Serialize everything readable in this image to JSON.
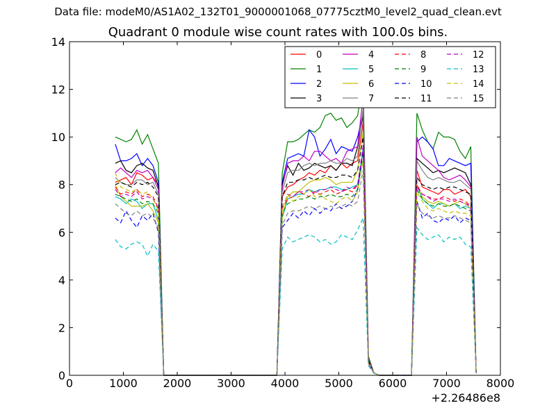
{
  "figure": {
    "suptitle": "Data file: modeM0/AS1A02_132T01_9000001068_07775cztM0_level2_quad_clean.evt"
  },
  "chart_data": {
    "type": "line",
    "title": "Quadrant 0 module wise count rates with 100.0s bins.",
    "xlabel": "",
    "ylabel": "",
    "x_offset_label": "+2.26486e8",
    "xlim": [
      0,
      8000
    ],
    "ylim": [
      0,
      14
    ],
    "x_ticks": [
      0,
      1000,
      2000,
      3000,
      4000,
      5000,
      6000,
      7000,
      8000
    ],
    "y_ticks": [
      0,
      2,
      4,
      6,
      8,
      10,
      12,
      14
    ],
    "grid": false,
    "legend_position": "top-right",
    "x": [
      850,
      950,
      1050,
      1150,
      1250,
      1350,
      1450,
      1550,
      1650,
      1750,
      1850,
      1950,
      2050,
      2150,
      2250,
      2350,
      2450,
      2550,
      2650,
      2750,
      2850,
      2950,
      3050,
      3150,
      3250,
      3350,
      3450,
      3550,
      3650,
      3750,
      3850,
      3950,
      4050,
      4150,
      4250,
      4350,
      4450,
      4550,
      4650,
      4750,
      4850,
      4950,
      5050,
      5150,
      5250,
      5350,
      5450,
      5550,
      5650,
      5750,
      5850,
      5950,
      6050,
      6150,
      6250,
      6350,
      6450,
      6550,
      6650,
      6750,
      6850,
      6950,
      7050,
      7150,
      7250,
      7350,
      7450,
      7550
    ],
    "series": [
      {
        "name": "0",
        "color": "#ff0000",
        "dash": "solid",
        "values": [
          8.1,
          8.2,
          8.3,
          8.0,
          8.5,
          8.4,
          8.2,
          8.3,
          8.0,
          0,
          0,
          0,
          0,
          0,
          0,
          0,
          0,
          0,
          0,
          0,
          0,
          0,
          0,
          0,
          0,
          0,
          0,
          0,
          0,
          0,
          0,
          7.5,
          7.9,
          8.0,
          8.2,
          8.3,
          8.5,
          8.4,
          8.6,
          8.5,
          8.8,
          8.6,
          8.9,
          8.7,
          8.9,
          9.0,
          10.6,
          0.6,
          0.1,
          0,
          0,
          0,
          0,
          0,
          0,
          0,
          8.6,
          7.9,
          7.8,
          7.7,
          7.6,
          7.8,
          7.8,
          7.6,
          7.7,
          7.8,
          7.5,
          0.1
        ]
      },
      {
        "name": "1",
        "color": "#008000",
        "dash": "solid",
        "values": [
          10.0,
          9.9,
          9.8,
          9.9,
          10.3,
          9.7,
          10.1,
          9.5,
          8.9,
          0,
          0,
          0,
          0,
          0,
          0,
          0,
          0,
          0,
          0,
          0,
          0,
          0,
          0,
          0,
          0,
          0,
          0,
          0,
          0,
          0,
          0,
          8.5,
          9.8,
          9.8,
          9.9,
          10.1,
          10.3,
          10.2,
          10.4,
          10.9,
          11.0,
          10.7,
          10.8,
          10.4,
          10.6,
          10.9,
          12.4,
          0.8,
          0.1,
          0,
          0,
          0,
          0,
          0,
          0,
          0,
          11.0,
          10.3,
          9.8,
          9.5,
          10.2,
          10.0,
          10.0,
          9.9,
          9.4,
          9.1,
          9.6,
          0.1
        ]
      },
      {
        "name": "2",
        "color": "#0000ff",
        "dash": "solid",
        "values": [
          9.7,
          9.0,
          9.0,
          9.1,
          9.3,
          8.8,
          9.1,
          8.8,
          8.1,
          0,
          0,
          0,
          0,
          0,
          0,
          0,
          0,
          0,
          0,
          0,
          0,
          0,
          0,
          0,
          0,
          0,
          0,
          0,
          0,
          0,
          0,
          8.1,
          9.1,
          9.2,
          9.3,
          9.2,
          10.3,
          10.0,
          9.2,
          9.5,
          9.9,
          9.3,
          9.6,
          9.5,
          9.4,
          10.0,
          11.0,
          0.6,
          0.1,
          0,
          0,
          0,
          0,
          0,
          0,
          0,
          9.8,
          10.0,
          9.8,
          9.5,
          8.8,
          8.8,
          9.1,
          9.0,
          8.9,
          8.8,
          8.9,
          0.1
        ]
      },
      {
        "name": "3",
        "color": "#000000",
        "dash": "solid",
        "values": [
          8.9,
          9.0,
          8.6,
          8.5,
          8.8,
          8.9,
          8.7,
          8.6,
          7.9,
          0,
          0,
          0,
          0,
          0,
          0,
          0,
          0,
          0,
          0,
          0,
          0,
          0,
          0,
          0,
          0,
          0,
          0,
          0,
          0,
          0,
          0,
          8.0,
          8.8,
          8.4,
          8.9,
          8.6,
          8.7,
          8.9,
          8.8,
          8.7,
          8.8,
          8.6,
          8.9,
          8.9,
          8.8,
          9.6,
          10.9,
          0.6,
          0.1,
          0,
          0,
          0,
          0,
          0,
          0,
          0,
          9.1,
          8.9,
          8.7,
          8.5,
          8.6,
          8.5,
          8.6,
          8.7,
          8.6,
          8.5,
          8.0,
          0.1
        ]
      },
      {
        "name": "4",
        "color": "#bf00bf",
        "dash": "solid",
        "values": [
          8.5,
          8.7,
          8.5,
          8.3,
          8.6,
          8.5,
          8.6,
          8.3,
          7.8,
          0,
          0,
          0,
          0,
          0,
          0,
          0,
          0,
          0,
          0,
          0,
          0,
          0,
          0,
          0,
          0,
          0,
          0,
          0,
          0,
          0,
          0,
          7.9,
          8.9,
          9.0,
          9.0,
          9.2,
          9.0,
          9.4,
          9.4,
          9.2,
          9.0,
          9.1,
          8.9,
          9.4,
          9.5,
          9.6,
          11.7,
          0.7,
          0.1,
          0,
          0,
          0,
          0,
          0,
          0,
          0,
          10.0,
          9.2,
          9.0,
          8.8,
          8.6,
          8.3,
          8.2,
          8.3,
          8.4,
          8.2,
          7.9,
          0.1
        ]
      },
      {
        "name": "5",
        "color": "#00bfbf",
        "dash": "solid",
        "values": [
          7.5,
          7.4,
          7.2,
          7.4,
          7.3,
          7.0,
          7.2,
          7.2,
          6.5,
          0,
          0,
          0,
          0,
          0,
          0,
          0,
          0,
          0,
          0,
          0,
          0,
          0,
          0,
          0,
          0,
          0,
          0,
          0,
          0,
          0,
          0,
          6.6,
          7.4,
          7.5,
          7.6,
          7.6,
          7.8,
          7.7,
          7.8,
          7.8,
          7.9,
          7.9,
          7.8,
          7.8,
          7.9,
          8.0,
          9.5,
          0.5,
          0.1,
          0,
          0,
          0,
          0,
          0,
          0,
          0,
          8.0,
          7.4,
          7.2,
          7.0,
          7.2,
          7.2,
          7.1,
          7.2,
          7.0,
          7.1,
          7.0,
          0.1
        ]
      },
      {
        "name": "6",
        "color": "#bfbf00",
        "dash": "solid",
        "values": [
          8.0,
          7.5,
          7.3,
          7.1,
          7.1,
          7.1,
          7.2,
          6.9,
          6.4,
          0,
          0,
          0,
          0,
          0,
          0,
          0,
          0,
          0,
          0,
          0,
          0,
          0,
          0,
          0,
          0,
          0,
          0,
          0,
          0,
          0,
          0,
          6.7,
          7.5,
          7.7,
          7.7,
          7.9,
          8.1,
          8.2,
          8.2,
          8.3,
          8.2,
          8.0,
          8.1,
          8.1,
          8.1,
          8.6,
          10.2,
          0.6,
          0.1,
          0,
          0,
          0,
          0,
          0,
          0,
          0,
          8.0,
          7.5,
          7.3,
          7.2,
          7.3,
          7.2,
          7.1,
          7.2,
          7.3,
          7.2,
          7.0,
          0.1
        ]
      },
      {
        "name": "7",
        "color": "#808080",
        "dash": "solid",
        "values": [
          8.3,
          8.1,
          8.0,
          8.0,
          8.2,
          8.2,
          8.0,
          8.1,
          7.6,
          0,
          0,
          0,
          0,
          0,
          0,
          0,
          0,
          0,
          0,
          0,
          0,
          0,
          0,
          0,
          0,
          0,
          0,
          0,
          0,
          0,
          0,
          7.7,
          8.5,
          8.6,
          8.6,
          8.8,
          8.9,
          8.8,
          8.9,
          8.9,
          9.0,
          8.9,
          8.9,
          9.1,
          9.0,
          9.2,
          11.2,
          0.6,
          0.1,
          0,
          0,
          0,
          0,
          0,
          0,
          0,
          9.0,
          8.6,
          8.3,
          8.2,
          8.3,
          8.2,
          8.1,
          8.1,
          8.2,
          8.0,
          7.8,
          0.1
        ]
      },
      {
        "name": "8",
        "color": "#ff0000",
        "dash": "dashed",
        "values": [
          7.9,
          7.6,
          7.7,
          7.6,
          7.8,
          7.5,
          7.6,
          7.5,
          7.0,
          0,
          0,
          0,
          0,
          0,
          0,
          0,
          0,
          0,
          0,
          0,
          0,
          0,
          0,
          0,
          0,
          0,
          0,
          0,
          0,
          0,
          0,
          7.0,
          7.4,
          7.5,
          7.7,
          7.6,
          7.5,
          7.7,
          7.6,
          7.7,
          7.8,
          7.6,
          7.7,
          7.8,
          7.7,
          8.0,
          9.4,
          0.5,
          0.1,
          0,
          0,
          0,
          0,
          0,
          0,
          0,
          8.0,
          7.6,
          7.5,
          7.4,
          7.4,
          7.5,
          7.4,
          7.3,
          7.4,
          7.3,
          7.1,
          0.1
        ]
      },
      {
        "name": "9",
        "color": "#008000",
        "dash": "dashed",
        "values": [
          7.6,
          7.5,
          7.4,
          7.3,
          7.4,
          7.2,
          7.3,
          7.2,
          6.8,
          0,
          0,
          0,
          0,
          0,
          0,
          0,
          0,
          0,
          0,
          0,
          0,
          0,
          0,
          0,
          0,
          0,
          0,
          0,
          0,
          0,
          0,
          6.8,
          7.2,
          7.3,
          7.4,
          7.4,
          7.5,
          7.4,
          7.5,
          7.5,
          7.6,
          7.5,
          7.5,
          7.6,
          7.5,
          7.8,
          9.2,
          0.5,
          0.1,
          0,
          0,
          0,
          0,
          0,
          0,
          0,
          7.8,
          7.4,
          7.2,
          7.1,
          7.2,
          7.1,
          7.1,
          7.2,
          7.1,
          7.0,
          6.9,
          0.1
        ]
      },
      {
        "name": "10",
        "color": "#0000ff",
        "dash": "dashed",
        "values": [
          6.6,
          6.4,
          6.9,
          6.5,
          6.2,
          6.7,
          6.5,
          6.8,
          6.0,
          0,
          0,
          0,
          0,
          0,
          0,
          0,
          0,
          0,
          0,
          0,
          0,
          0,
          0,
          0,
          0,
          0,
          0,
          0,
          0,
          0,
          0,
          6.2,
          6.5,
          6.8,
          6.6,
          6.9,
          6.7,
          7.0,
          6.8,
          7.0,
          6.9,
          7.2,
          7.0,
          7.1,
          7.3,
          7.8,
          9.5,
          0.5,
          0.1,
          0,
          0,
          0,
          0,
          0,
          0,
          0,
          7.3,
          6.6,
          6.8,
          6.5,
          6.4,
          6.6,
          6.5,
          6.7,
          6.4,
          6.6,
          6.5,
          0.1
        ]
      },
      {
        "name": "11",
        "color": "#000000",
        "dash": "dashed",
        "values": [
          8.0,
          8.1,
          8.0,
          7.9,
          8.1,
          8.0,
          8.1,
          7.9,
          7.5,
          0,
          0,
          0,
          0,
          0,
          0,
          0,
          0,
          0,
          0,
          0,
          0,
          0,
          0,
          0,
          0,
          0,
          0,
          0,
          0,
          0,
          0,
          7.5,
          8.1,
          8.1,
          8.2,
          8.2,
          8.3,
          8.2,
          8.3,
          8.4,
          8.3,
          8.3,
          8.4,
          8.4,
          8.3,
          8.6,
          10.0,
          0.6,
          0.1,
          0,
          0,
          0,
          0,
          0,
          0,
          0,
          8.3,
          8.0,
          7.9,
          7.8,
          7.9,
          7.8,
          7.9,
          7.9,
          7.8,
          7.7,
          7.6,
          0.1
        ]
      },
      {
        "name": "12",
        "color": "#bf00bf",
        "dash": "dashed",
        "values": [
          7.8,
          7.5,
          7.6,
          7.5,
          7.7,
          7.4,
          7.5,
          7.4,
          7.0,
          0,
          0,
          0,
          0,
          0,
          0,
          0,
          0,
          0,
          0,
          0,
          0,
          0,
          0,
          0,
          0,
          0,
          0,
          0,
          0,
          0,
          0,
          7.0,
          7.6,
          7.5,
          7.7,
          7.7,
          7.8,
          7.6,
          7.8,
          7.8,
          7.9,
          7.8,
          7.7,
          7.9,
          7.8,
          8.0,
          9.6,
          0.5,
          0.1,
          0,
          0,
          0,
          0,
          0,
          0,
          0,
          7.9,
          7.6,
          7.5,
          7.3,
          7.4,
          7.4,
          7.3,
          7.4,
          7.3,
          7.2,
          7.1,
          0.1
        ]
      },
      {
        "name": "13",
        "color": "#00bfbf",
        "dash": "dashed",
        "values": [
          5.7,
          5.4,
          5.3,
          5.5,
          5.6,
          5.5,
          5.0,
          5.5,
          5.2,
          0,
          0,
          0,
          0,
          0,
          0,
          0,
          0,
          0,
          0,
          0,
          0,
          0,
          0,
          0,
          0,
          0,
          0,
          0,
          0,
          0,
          0,
          5.3,
          5.8,
          5.6,
          5.7,
          5.8,
          5.9,
          5.8,
          5.6,
          5.7,
          5.5,
          5.6,
          5.9,
          5.8,
          5.7,
          6.1,
          6.6,
          0.4,
          0.1,
          0,
          0,
          0,
          0,
          0,
          0,
          0,
          6.2,
          5.9,
          5.7,
          5.8,
          5.9,
          5.6,
          5.8,
          5.7,
          5.8,
          5.5,
          5.4,
          0.1
        ]
      },
      {
        "name": "14",
        "color": "#bfbf00",
        "dash": "dashed",
        "values": [
          8.5,
          7.9,
          7.8,
          7.7,
          7.8,
          7.6,
          7.7,
          7.4,
          6.9,
          0,
          0,
          0,
          0,
          0,
          0,
          0,
          0,
          0,
          0,
          0,
          0,
          0,
          0,
          0,
          0,
          0,
          0,
          0,
          0,
          0,
          0,
          7.0,
          7.6,
          7.3,
          7.5,
          7.6,
          7.8,
          7.5,
          7.6,
          7.4,
          7.3,
          7.2,
          7.4,
          7.5,
          7.3,
          7.7,
          9.0,
          0.5,
          0.1,
          0,
          0,
          0,
          0,
          0,
          0,
          0,
          7.7,
          7.3,
          7.0,
          6.9,
          7.0,
          6.9,
          6.8,
          6.9,
          6.8,
          6.8,
          6.7,
          0.1
        ]
      },
      {
        "name": "15",
        "color": "#808080",
        "dash": "dashed",
        "values": [
          7.2,
          7.0,
          6.8,
          6.7,
          6.9,
          6.7,
          6.8,
          6.6,
          6.2,
          0,
          0,
          0,
          0,
          0,
          0,
          0,
          0,
          0,
          0,
          0,
          0,
          0,
          0,
          0,
          0,
          0,
          0,
          0,
          0,
          0,
          0,
          6.3,
          6.8,
          6.9,
          6.9,
          7.0,
          7.1,
          7.0,
          7.1,
          7.0,
          7.1,
          7.0,
          7.1,
          7.2,
          7.1,
          7.3,
          8.6,
          0.5,
          0.1,
          0,
          0,
          0,
          0,
          0,
          0,
          0,
          7.2,
          6.8,
          6.7,
          6.6,
          6.7,
          6.6,
          6.6,
          6.7,
          6.6,
          6.5,
          6.4,
          0.1
        ]
      }
    ]
  }
}
